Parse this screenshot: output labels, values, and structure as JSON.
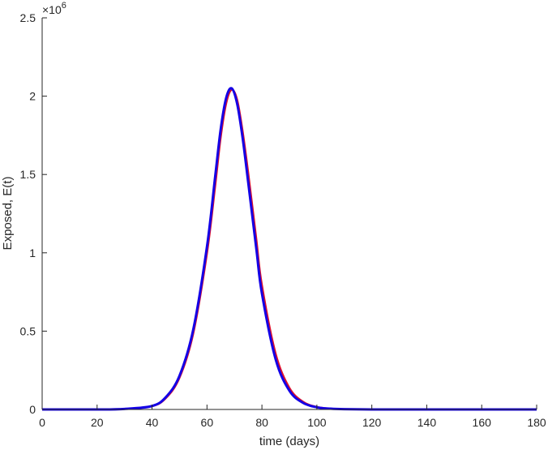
{
  "chart_data": {
    "type": "line",
    "title": "",
    "xlabel": "time (days)",
    "ylabel": "Exposed, E(t)",
    "xlim": [
      0,
      180
    ],
    "ylim": [
      0,
      2500000
    ],
    "x_ticks": [
      "0",
      "20",
      "40",
      "60",
      "80",
      "100",
      "120",
      "140",
      "160",
      "180"
    ],
    "y_ticks": [
      "0",
      "0.5",
      "1",
      "1.5",
      "2",
      "2.5"
    ],
    "y_multiplier_base": "×10",
    "y_multiplier_exponent": "6",
    "grid": false,
    "legend": "none",
    "series": [
      {
        "color": "#e0102a",
        "x": [
          0,
          20,
          30,
          40,
          45,
          50,
          55,
          60,
          63,
          65,
          67,
          69,
          71,
          73,
          75,
          78,
          80,
          85,
          90,
          95,
          100,
          105,
          110,
          120,
          140,
          180
        ],
        "y": [
          0,
          0,
          3000,
          20000,
          70000,
          200000,
          480000,
          990000,
          1420000,
          1730000,
          1950000,
          2040000,
          1980000,
          1780000,
          1520000,
          1090000,
          800000,
          360000,
          140000,
          50000,
          17000,
          6000,
          2000,
          300,
          0,
          0
        ]
      },
      {
        "color": "#1400e6",
        "x": [
          0,
          20,
          30,
          40,
          45,
          50,
          55,
          60,
          63,
          65,
          67,
          69,
          71,
          73,
          75,
          78,
          80,
          85,
          90,
          95,
          100,
          105,
          110,
          120,
          140,
          180
        ],
        "y": [
          0,
          0,
          3500,
          22000,
          78000,
          215000,
          510000,
          1040000,
          1490000,
          1790000,
          1990000,
          2050000,
          1950000,
          1730000,
          1450000,
          1020000,
          740000,
          320000,
          120000,
          42000,
          14000,
          5000,
          1700,
          250,
          0,
          0
        ]
      }
    ]
  }
}
